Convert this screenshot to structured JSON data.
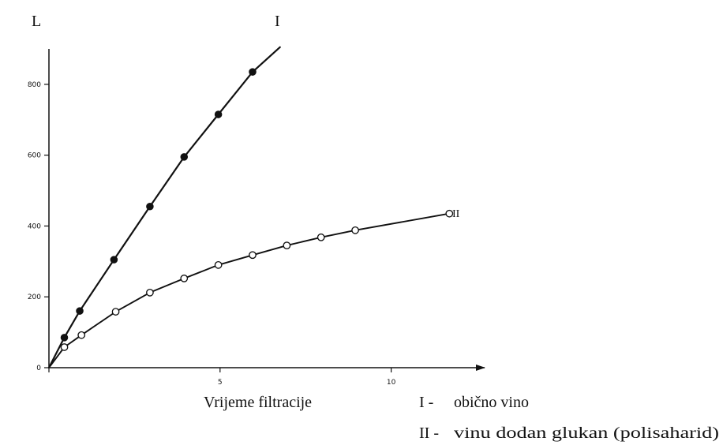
{
  "chart_data": {
    "type": "line",
    "ylabel": "L",
    "xlabel": "Vrijeme filtracije",
    "xlim": [
      0,
      12.5
    ],
    "ylim": [
      0,
      900
    ],
    "x_ticks": [
      {
        "value": 0,
        "label": ""
      },
      {
        "value": 5,
        "label": "5"
      },
      {
        "value": 10,
        "label": "10"
      }
    ],
    "y_ticks": [
      {
        "value": 0,
        "label": "0"
      },
      {
        "value": 200,
        "label": "200"
      },
      {
        "value": 400,
        "label": "400"
      },
      {
        "value": 600,
        "label": "600"
      },
      {
        "value": 800,
        "label": "800"
      }
    ],
    "grid": false,
    "series": [
      {
        "name": "I",
        "marker": "filled-circle",
        "x": [
          0,
          0.45,
          0.9,
          1.9,
          2.95,
          3.95,
          4.95,
          5.95,
          6.75
        ],
        "y": [
          0,
          85,
          160,
          305,
          455,
          595,
          715,
          835,
          905
        ],
        "marker_count": 7,
        "marker_start": 1
      },
      {
        "name": "II",
        "marker": "open-circle",
        "x": [
          0,
          0.45,
          0.95,
          1.95,
          2.95,
          3.95,
          4.95,
          5.95,
          6.95,
          7.95,
          8.95,
          11.7
        ],
        "y": [
          0,
          58,
          92,
          158,
          212,
          252,
          290,
          318,
          345,
          368,
          388,
          435
        ],
        "marker_count": 11,
        "marker_start": 1
      }
    ],
    "series_labels": [
      {
        "series": "I",
        "text": "I"
      },
      {
        "series": "II",
        "text": "II"
      }
    ],
    "legend": {
      "placement": "bottom-right",
      "entries": [
        {
          "key": "I -",
          "text": "obično vino"
        },
        {
          "key": "II -",
          "text": "vinu dodan glukan  (polisaharid)"
        }
      ]
    }
  }
}
